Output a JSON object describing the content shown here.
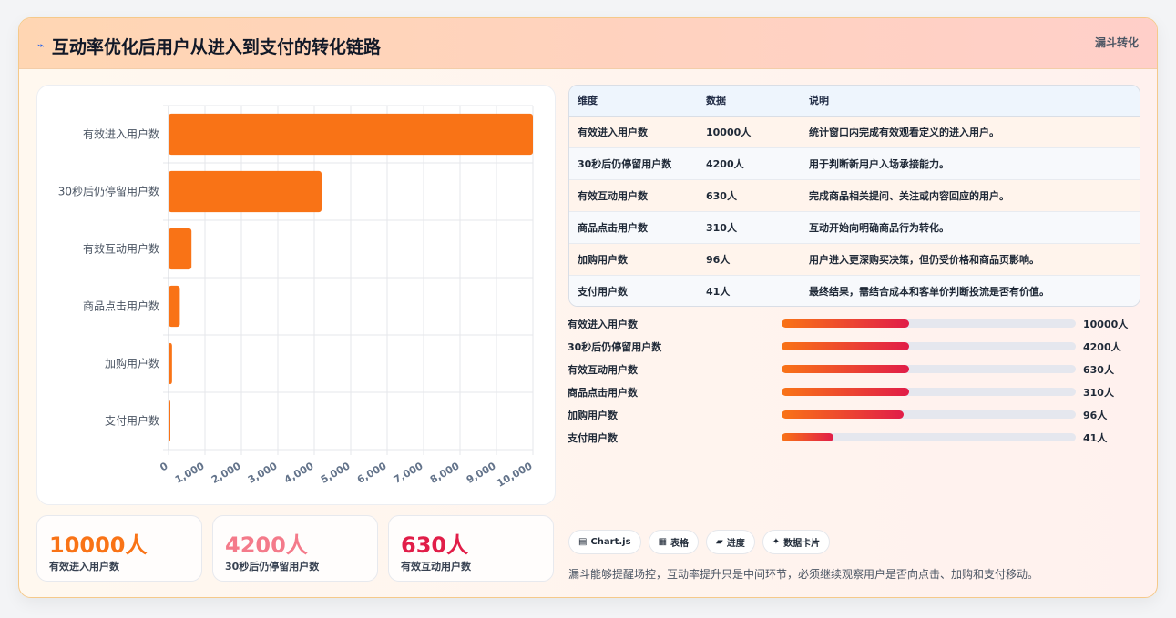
{
  "header": {
    "icon": "lightning-icon",
    "title": "互动率优化后用户从进入到支付的转化链路",
    "tag": "漏斗转化"
  },
  "chart_data": {
    "type": "bar",
    "orientation": "horizontal",
    "categories": [
      "有效进入用户数",
      "30秒后仍停留用户数",
      "有效互动用户数",
      "商品点击用户数",
      "加购用户数",
      "支付用户数"
    ],
    "values": [
      10000,
      4200,
      630,
      310,
      96,
      41
    ],
    "xlim": [
      0,
      10000
    ],
    "xticks": [
      "0",
      "1,000",
      "2,000",
      "3,000",
      "4,000",
      "5,000",
      "6,000",
      "7,000",
      "8,000",
      "9,000",
      "10,000"
    ],
    "grid": true,
    "colors": {
      "bar": "#f97316"
    }
  },
  "stats": [
    {
      "value": "10000人",
      "label": "有效进入用户数",
      "color": "#f97316"
    },
    {
      "value": "4200人",
      "label": "30秒后仍停留用户数",
      "color": "#f47a8a"
    },
    {
      "value": "630人",
      "label": "有效互动用户数",
      "color": "#e11d48"
    }
  ],
  "table": {
    "headers": [
      "维度",
      "数据",
      "说明"
    ],
    "rows": [
      [
        "有效进入用户数",
        "10000人",
        "统计窗口内完成有效观看定义的进入用户。"
      ],
      [
        "30秒后仍停留用户数",
        "4200人",
        "用于判断新用户入场承接能力。"
      ],
      [
        "有效互动用户数",
        "630人",
        "完成商品相关提问、关注或内容回应的用户。"
      ],
      [
        "商品点击用户数",
        "310人",
        "互动开始向明确商品行为转化。"
      ],
      [
        "加购用户数",
        "96人",
        "用户进入更深购买决策，但仍受价格和商品页影响。"
      ],
      [
        "支付用户数",
        "41人",
        "最终结果，需结合成本和客单价判断投流是否有价值。"
      ]
    ]
  },
  "progress": [
    {
      "label": "有效进入用户数",
      "value": "10000人",
      "fill": 0.434
    },
    {
      "label": "30秒后仍停留用户数",
      "value": "4200人",
      "fill": 0.434
    },
    {
      "label": "有效互动用户数",
      "value": "630人",
      "fill": 0.434
    },
    {
      "label": "商品点击用户数",
      "value": "310人",
      "fill": 0.434
    },
    {
      "label": "加购用户数",
      "value": "96人",
      "fill": 0.415
    },
    {
      "label": "支付用户数",
      "value": "41人",
      "fill": 0.177
    }
  ],
  "chips": [
    {
      "icon": "chart-icon",
      "glyph": "▤",
      "label": "Chart.js"
    },
    {
      "icon": "table-icon",
      "glyph": "▦",
      "label": "表格"
    },
    {
      "icon": "progress-icon",
      "glyph": "▰",
      "label": "进度"
    },
    {
      "icon": "card-icon",
      "glyph": "✦",
      "label": "数据卡片"
    }
  ],
  "note": "漏斗能够提醒场控，互动率提升只是中间环节，必须继续观察用户是否向点击、加购和支付移动。"
}
